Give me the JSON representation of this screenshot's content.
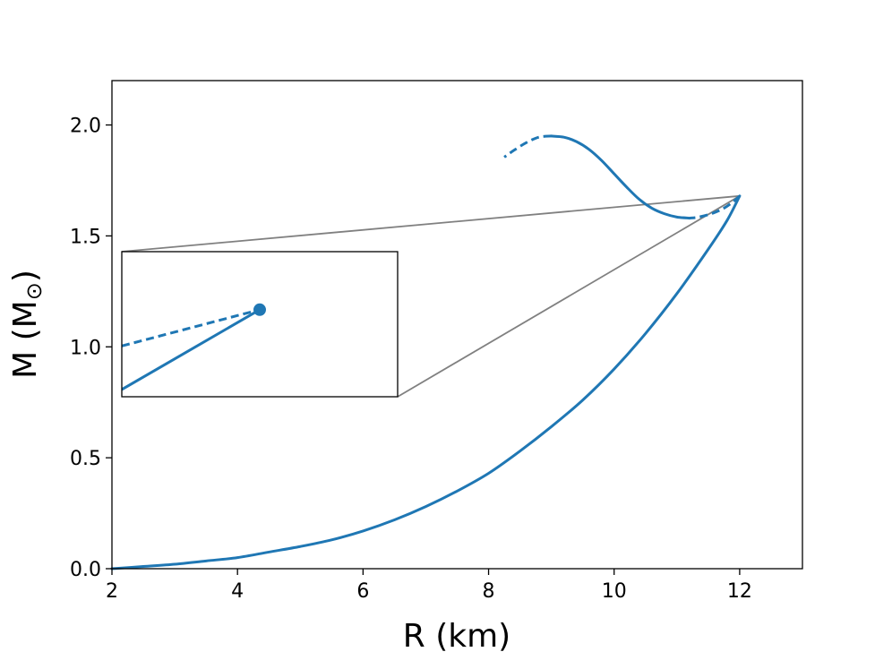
{
  "chart_data": {
    "type": "line",
    "xlabel": "R (km)",
    "ylabel_main": "M (M",
    "ylabel_sym": "⊙",
    "ylabel_close": ")",
    "xlim": [
      2,
      13
    ],
    "ylim": [
      0,
      2.2
    ],
    "xticks": [
      2,
      4,
      6,
      8,
      10,
      12
    ],
    "xtick_labels": [
      "2",
      "4",
      "6",
      "8",
      "10",
      "12"
    ],
    "yticks": [
      0.0,
      0.5,
      1.0,
      1.5,
      2.0
    ],
    "ytick_labels": [
      "0.0",
      "0.5",
      "1.0",
      "1.5",
      "2.0"
    ],
    "grid": false,
    "color": "#1f77b4",
    "series": [
      {
        "style": "solid",
        "x": [
          2.0,
          2.5,
          3.0,
          3.5,
          4.0,
          4.5,
          5.0,
          5.5,
          6.0,
          6.5,
          7.0,
          7.5,
          8.0,
          8.5,
          9.0,
          9.5,
          10.0,
          10.5,
          11.0,
          11.5,
          11.8,
          12.0
        ],
        "y": [
          0.0,
          0.01,
          0.02,
          0.035,
          0.05,
          0.075,
          0.1,
          0.13,
          0.17,
          0.22,
          0.28,
          0.35,
          0.43,
          0.53,
          0.64,
          0.76,
          0.9,
          1.06,
          1.24,
          1.44,
          1.57,
          1.68
        ]
      },
      {
        "style": "dashed",
        "x": [
          12.0,
          11.9,
          11.75,
          11.55,
          11.35,
          11.2
        ],
        "y": [
          1.68,
          1.655,
          1.625,
          1.6,
          1.585,
          1.58
        ]
      },
      {
        "style": "solid",
        "x": [
          11.2,
          11.0,
          10.8,
          10.6,
          10.4,
          10.2,
          10.0,
          9.8,
          9.6,
          9.4,
          9.2,
          9.0
        ],
        "y": [
          1.58,
          1.585,
          1.6,
          1.625,
          1.665,
          1.72,
          1.78,
          1.84,
          1.89,
          1.925,
          1.945,
          1.95
        ]
      },
      {
        "style": "dashed",
        "x": [
          9.0,
          8.8,
          8.6,
          8.4,
          8.25
        ],
        "y": [
          1.95,
          1.945,
          1.92,
          1.885,
          1.855
        ]
      }
    ],
    "inset": {
      "source_xlim": [
        11.99,
        12.01
      ],
      "source_ylim": [
        1.674,
        1.684
      ],
      "marker": {
        "x": 12.0,
        "y": 1.68
      }
    }
  }
}
